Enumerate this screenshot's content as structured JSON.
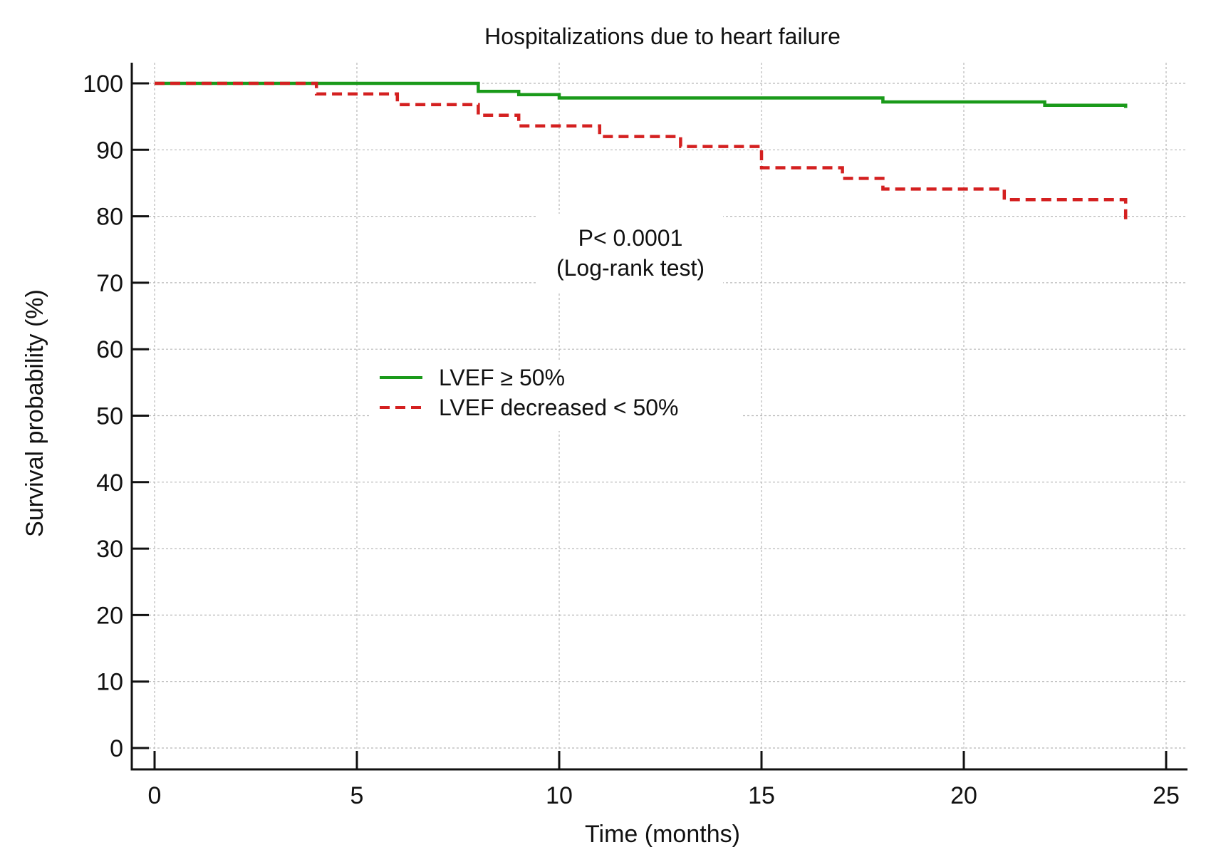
{
  "chart_data": {
    "type": "line",
    "title": "Hospitalizations due to heart failure",
    "xlabel": "Time (months)",
    "ylabel": "Survival probability (%)",
    "xlim": [
      0,
      25
    ],
    "ylim": [
      0,
      100
    ],
    "x_ticks": [
      0,
      5,
      10,
      15,
      20,
      25
    ],
    "y_ticks": [
      0,
      10,
      20,
      30,
      40,
      50,
      60,
      70,
      80,
      90,
      100
    ],
    "grid": true,
    "legend_position": "center-left",
    "annotation": [
      "P< 0.0001",
      "(Log-rank test)"
    ],
    "series": [
      {
        "name": "LVEF ≥ 50%",
        "color": "#1a9a1a",
        "line_style": "solid",
        "x": [
          0,
          8,
          9,
          10,
          18,
          22,
          24
        ],
        "y": [
          100,
          98.8,
          98.3,
          97.8,
          97.2,
          96.7,
          96.3
        ]
      },
      {
        "name": "LVEF decreased < 50%",
        "color": "#d42020",
        "line_style": "dashed",
        "x": [
          0,
          4,
          6,
          8,
          9,
          11,
          13,
          15,
          17,
          18,
          21,
          24
        ],
        "y": [
          100,
          98.4,
          96.8,
          95.2,
          93.6,
          92.0,
          90.5,
          87.3,
          85.7,
          84.1,
          82.5,
          79.5
        ]
      }
    ]
  }
}
